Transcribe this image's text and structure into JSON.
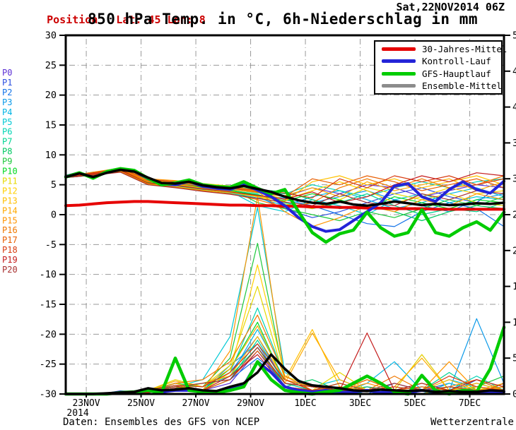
{
  "header": {
    "position_label": "Position",
    "position_value": "Lat: 45 Lon: 8",
    "run_date": "Sat,22NOV2014 06Z",
    "accent_color": "#cc0000"
  },
  "footer": {
    "source": "Daten: Ensembles des GFS von NCEP",
    "brand": "Wetterzentrale"
  },
  "chart_data": {
    "type": "line",
    "title": "850 hPa Temp. in °C, 6h-Niederschlag in mm",
    "x_axis": {
      "start": "22NOV2014 06Z",
      "days": 16,
      "year_label": "2014",
      "ticks": [
        {
          "day": 0.75,
          "label": "23NOV"
        },
        {
          "day": 2.75,
          "label": "25NOV"
        },
        {
          "day": 4.75,
          "label": "27NOV"
        },
        {
          "day": 6.75,
          "label": "29NOV"
        },
        {
          "day": 8.75,
          "label": "1DEC"
        },
        {
          "day": 10.75,
          "label": "3DEC"
        },
        {
          "day": 12.75,
          "label": "5DEC"
        },
        {
          "day": 14.75,
          "label": "7DEC"
        }
      ]
    },
    "y_left": {
      "min": -30,
      "max": 30,
      "step": 5,
      "unit": "°C"
    },
    "y_right": {
      "min": 0,
      "max": 50,
      "step": 5,
      "unit": "mm"
    },
    "grid": {
      "color": "#999999",
      "style": "dash-dot"
    },
    "legend_position": "top-right",
    "main_series": [
      {
        "name": "30-Jahres-Mittel",
        "color": "#e60000",
        "line_color": "#e60000",
        "width": 4,
        "temp": [
          1.5,
          1.6,
          1.8,
          2.0,
          2.1,
          2.2,
          2.2,
          2.1,
          2.0,
          1.9,
          1.8,
          1.7,
          1.6,
          1.6,
          1.5,
          1.5,
          1.4,
          1.4,
          1.3,
          1.3,
          1.2,
          1.2,
          1.1,
          1.1,
          1.0,
          1.0,
          1.0,
          0.9,
          0.9,
          0.9,
          0.9,
          0.9,
          0.9
        ],
        "precip": null
      },
      {
        "name": "Kontroll-Lauf",
        "color": "#2424d8",
        "line_color": "#2424d8",
        "width": 4,
        "temp": [
          6.4,
          7.0,
          6.2,
          7.1,
          7.6,
          7.3,
          6.0,
          5.1,
          5.0,
          5.6,
          4.7,
          4.4,
          4.2,
          5.0,
          4.1,
          3.0,
          1.5,
          -0.5,
          -2.0,
          -2.8,
          -2.5,
          -1.0,
          0.5,
          2.0,
          4.8,
          5.2,
          3.0,
          2.2,
          4.2,
          5.5,
          4.2,
          3.6,
          5.6
        ],
        "precip": [
          0,
          0,
          0,
          0,
          0.3,
          0.2,
          0.5,
          0.3,
          0.5,
          0.5,
          0.3,
          0.2,
          0.8,
          1.2,
          4.5,
          3.0,
          1.0,
          0.5,
          0.3,
          0.5,
          0.2,
          0.3,
          0.5,
          0.2,
          0.3,
          0.2,
          0.5,
          0.3,
          0.2,
          0.5,
          0.3,
          0.2,
          0.3
        ]
      },
      {
        "name": "GFS-Hauptlauf",
        "color": "#00cc00",
        "line_color": "#00cc00",
        "width": 4.5,
        "temp": [
          6.3,
          7.0,
          6.1,
          7.2,
          7.7,
          7.4,
          6.1,
          5.0,
          5.3,
          5.8,
          5.0,
          4.7,
          4.6,
          5.5,
          4.4,
          3.5,
          4.2,
          0.5,
          -3.0,
          -4.6,
          -3.2,
          -2.6,
          0.4,
          -2.2,
          -3.6,
          -3.0,
          0.8,
          -3.0,
          -3.6,
          -2.2,
          -1.2,
          -2.6,
          0.4
        ],
        "precip": [
          0,
          0,
          0,
          0,
          0.2,
          0.3,
          0.5,
          0.2,
          5.0,
          0.5,
          0.3,
          0.2,
          0.5,
          1.0,
          4.5,
          2.0,
          0.5,
          0.2,
          0,
          0.3,
          0.5,
          1.5,
          2.5,
          1.5,
          0.3,
          0,
          2.6,
          0.5,
          0,
          0.5,
          0.3,
          3.5,
          9.3
        ]
      },
      {
        "name": "Ensemble-Mittel",
        "color": "#8c8c8c",
        "line_color": "#000000",
        "width": 3.5,
        "temp": [
          6.3,
          6.9,
          6.3,
          7.0,
          7.5,
          7.2,
          6.2,
          5.3,
          5.2,
          5.5,
          4.9,
          4.6,
          4.4,
          4.8,
          4.3,
          3.8,
          3.0,
          2.4,
          2.0,
          1.8,
          2.2,
          1.7,
          1.5,
          1.8,
          2.2,
          1.9,
          1.6,
          1.8,
          1.6,
          1.7,
          1.9,
          1.8,
          2.0
        ],
        "precip": [
          0,
          0,
          0,
          0.1,
          0.2,
          0.3,
          0.8,
          0.5,
          0.6,
          0.8,
          0.5,
          0.4,
          1.0,
          1.5,
          3.0,
          5.5,
          3.5,
          1.8,
          1.2,
          1.0,
          0.8,
          0.5,
          0.4,
          0.6,
          0.5,
          0.4,
          0.5,
          0.3,
          0.4,
          0.3,
          0.3,
          0.5,
          0.4
        ]
      }
    ],
    "members": [
      {
        "name": "P0",
        "color": "#5b2fd4",
        "temp": [
          6.4,
          7.0,
          7.6,
          5.8,
          5.4,
          4.9,
          4.6,
          4.0,
          3.0,
          4.5,
          3.5,
          5.0,
          4.5,
          3.0,
          4.0,
          5.0,
          4.5
        ],
        "precip": [
          0,
          0,
          0,
          0,
          0.5,
          0.5,
          1.5,
          6,
          1,
          0,
          0.5,
          0,
          0.5,
          0,
          0,
          0.5,
          0
        ]
      },
      {
        "name": "P1",
        "color": "#2b4fe0",
        "temp": [
          6.2,
          6.6,
          7.3,
          5.2,
          5.0,
          4.4,
          3.8,
          3.0,
          1.0,
          -0.5,
          0.5,
          2.0,
          3.5,
          4.5,
          3.0,
          2.0,
          5.5
        ],
        "precip": [
          0,
          0,
          0,
          0.3,
          1.5,
          0.5,
          3,
          8,
          1.5,
          0.5,
          0,
          1,
          0,
          0.5,
          1.5,
          0.5,
          1
        ]
      },
      {
        "name": "P2",
        "color": "#1273e8",
        "temp": [
          6.3,
          6.9,
          7.7,
          5.6,
          5.3,
          4.8,
          4.5,
          3.8,
          2.5,
          1.5,
          0.0,
          -1.5,
          -2.0,
          0.5,
          2.0,
          1.0,
          -2.0
        ],
        "precip": [
          0,
          0,
          0,
          0.5,
          1,
          1.5,
          2,
          5,
          2,
          1,
          0.5,
          0,
          1.5,
          0.5,
          0,
          2,
          0.5
        ]
      },
      {
        "name": "P3",
        "color": "#0a99e8",
        "temp": [
          6.4,
          7.1,
          7.4,
          5.4,
          5.6,
          5.0,
          4.0,
          3.2,
          2.8,
          2.0,
          3.0,
          4.0,
          2.5,
          1.5,
          0.5,
          2.5,
          3.5
        ],
        "precip": [
          0,
          0,
          0,
          0.2,
          0.8,
          0.5,
          4,
          7,
          1,
          0.5,
          1.5,
          0.5,
          0,
          1,
          0.5,
          10.5,
          1.5
        ]
      },
      {
        "name": "P4",
        "color": "#00b4e4",
        "temp": [
          6.2,
          6.7,
          7.2,
          5.0,
          4.8,
          4.2,
          3.6,
          2.8,
          1.5,
          3.0,
          4.0,
          2.5,
          1.0,
          2.0,
          3.5,
          4.5,
          3.0
        ],
        "precip": [
          0,
          0,
          0,
          0.5,
          1.2,
          1,
          2.5,
          9,
          2,
          0.5,
          0,
          1.5,
          4.5,
          0.5,
          2,
          1,
          0.5
        ]
      },
      {
        "name": "P5",
        "color": "#00c8d4",
        "temp": [
          6.3,
          6.8,
          7.6,
          5.7,
          5.1,
          4.5,
          3.9,
          1.5,
          0.5,
          2.5,
          1.5,
          0.0,
          2.5,
          3.5,
          2.0,
          3.0,
          2.5
        ],
        "precip": [
          0,
          0,
          0.2,
          0.5,
          1,
          2,
          8,
          26,
          3,
          1,
          2,
          0.5,
          0.5,
          0,
          1.5,
          0.5,
          0
        ]
      },
      {
        "name": "P6",
        "color": "#00d4b4",
        "temp": [
          6.4,
          7.0,
          7.5,
          5.5,
          5.3,
          4.7,
          4.3,
          3.6,
          3.5,
          5.0,
          4.0,
          3.0,
          4.5,
          5.5,
          4.5,
          5.5,
          6.0
        ],
        "precip": [
          0,
          0,
          0,
          0.3,
          1.5,
          1,
          3,
          12,
          2.5,
          1,
          0.5,
          0,
          0.5,
          5.5,
          0.5,
          2.5,
          0.5
        ]
      },
      {
        "name": "P7",
        "color": "#00d493",
        "temp": [
          6.2,
          6.6,
          7.4,
          5.3,
          4.9,
          4.3,
          4.1,
          3.4,
          2.0,
          1.0,
          2.0,
          3.5,
          1.5,
          0.0,
          1.0,
          0.5,
          2.0
        ],
        "precip": [
          0,
          0,
          0,
          0.5,
          1,
          0.5,
          2,
          7.5,
          1.5,
          0.5,
          1,
          0.5,
          0,
          0.5,
          3,
          0.5,
          1
        ]
      },
      {
        "name": "P8",
        "color": "#00c862",
        "temp": [
          6.3,
          6.9,
          7.8,
          5.9,
          5.5,
          5.1,
          4.7,
          4.2,
          3.8,
          2.5,
          1.0,
          1.5,
          0.5,
          -1.0,
          0.5,
          1.5,
          1.0
        ],
        "precip": [
          0,
          0,
          0,
          0.2,
          0.8,
          1.5,
          2.5,
          6.5,
          1,
          2,
          0.5,
          1,
          0.5,
          0,
          0.5,
          1.5,
          0.5
        ]
      },
      {
        "name": "P9",
        "color": "#1ec83c",
        "temp": [
          6.4,
          7.1,
          7.6,
          5.6,
          5.2,
          4.6,
          4.4,
          2.0,
          1.0,
          0.0,
          -1.0,
          0.5,
          -0.5,
          1.0,
          2.5,
          1.5,
          3.0
        ],
        "precip": [
          0,
          0,
          0,
          0.5,
          1.5,
          1,
          5,
          21,
          2,
          0.5,
          1.5,
          0.5,
          1,
          0.5,
          0,
          1,
          2.5
        ]
      },
      {
        "name": "P10",
        "color": "#00d820",
        "temp": [
          6.3,
          6.8,
          7.5,
          5.4,
          5.0,
          4.5,
          4.0,
          3.3,
          2.3,
          3.5,
          2.5,
          1.0,
          3.0,
          2.0,
          1.0,
          2.5,
          2.0
        ],
        "precip": [
          0,
          0,
          0,
          0.3,
          1,
          0.5,
          3.5,
          10,
          1.5,
          1,
          0.5,
          0,
          0.5,
          1.5,
          0.5,
          0,
          0.5
        ]
      },
      {
        "name": "P11",
        "color": "#e6d800",
        "temp": [
          6.2,
          6.7,
          7.3,
          5.2,
          4.7,
          4.1,
          3.7,
          3.0,
          1.8,
          1.0,
          2.5,
          4.5,
          3.5,
          2.5,
          3.5,
          2.0,
          1.5
        ],
        "precip": [
          0,
          0,
          0,
          0.5,
          2,
          1,
          4,
          15,
          2,
          0.5,
          3,
          0.5,
          0.5,
          0,
          1,
          0.5,
          1.5
        ]
      },
      {
        "name": "P12",
        "color": "#ffd000",
        "temp": [
          6.4,
          7.0,
          7.7,
          5.8,
          5.6,
          5.2,
          4.8,
          4.0,
          2.5,
          4.0,
          5.5,
          4.0,
          2.0,
          3.0,
          4.5,
          3.5,
          4.0
        ],
        "precip": [
          0,
          0,
          0,
          0.4,
          1.5,
          0.5,
          3,
          18,
          2.5,
          1,
          0.5,
          2,
          0.5,
          5.5,
          0.5,
          1,
          0.5
        ]
      },
      {
        "name": "P13",
        "color": "#ffc000",
        "temp": [
          6.3,
          6.9,
          7.4,
          5.5,
          5.1,
          4.4,
          3.9,
          3.1,
          2.2,
          5.5,
          6.5,
          5.0,
          6.0,
          4.5,
          5.5,
          6.5,
          5.0
        ],
        "precip": [
          0,
          0,
          0,
          0.3,
          1,
          1.5,
          2.5,
          8,
          2,
          9,
          1,
          0.5,
          0,
          0.5,
          2,
          0.5,
          1
        ]
      },
      {
        "name": "P14",
        "color": "#ffaa00",
        "temp": [
          6.2,
          6.8,
          7.6,
          5.7,
          5.4,
          4.9,
          4.2,
          3.7,
          3.2,
          4.5,
          3.0,
          5.5,
          4.0,
          5.0,
          6.0,
          4.0,
          5.5
        ],
        "precip": [
          0,
          0,
          0,
          0.5,
          1.8,
          1,
          3.5,
          9.5,
          1.5,
          8.5,
          2,
          0.5,
          1,
          5,
          0.5,
          1.5,
          0.5
        ]
      },
      {
        "name": "P15",
        "color": "#ff9500",
        "temp": [
          6.4,
          7.1,
          7.8,
          6.0,
          5.7,
          5.0,
          4.6,
          3.9,
          0.5,
          -2.0,
          -0.5,
          1.5,
          0.5,
          2.5,
          1.5,
          3.5,
          2.5
        ],
        "precip": [
          0,
          0,
          0.2,
          0.5,
          1.2,
          0.5,
          6,
          27.5,
          2,
          1,
          0.5,
          1.5,
          0.5,
          0.5,
          4.5,
          0.5,
          1
        ]
      },
      {
        "name": "P16",
        "color": "#f07800",
        "temp": [
          6.3,
          6.7,
          7.2,
          5.1,
          4.6,
          4.0,
          3.5,
          2.5,
          1.2,
          2.0,
          4.5,
          6.0,
          4.5,
          6.0,
          4.5,
          5.0,
          6.5
        ],
        "precip": [
          0,
          0,
          0,
          0.4,
          1.5,
          2,
          4.5,
          11,
          2.5,
          0.5,
          1,
          0.5,
          2.5,
          0.5,
          1,
          2,
          0.5
        ]
      },
      {
        "name": "P17",
        "color": "#e85e00",
        "temp": [
          6.2,
          6.9,
          7.5,
          5.6,
          5.2,
          4.7,
          4.4,
          3.8,
          3.0,
          6.0,
          5.0,
          6.5,
          5.5,
          4.0,
          5.0,
          6.0,
          4.5
        ],
        "precip": [
          0,
          0,
          0,
          0.3,
          1,
          0.5,
          2,
          6,
          1.5,
          1,
          0.5,
          2,
          0.5,
          1,
          0.5,
          0,
          1.5
        ]
      },
      {
        "name": "P18",
        "color": "#d83c10",
        "temp": [
          6.4,
          7.0,
          7.7,
          5.9,
          5.5,
          5.0,
          4.5,
          4.1,
          3.6,
          2.8,
          6.0,
          4.5,
          6.5,
          5.5,
          6.5,
          5.0,
          6.0
        ],
        "precip": [
          0,
          0,
          0,
          0.5,
          1.2,
          1,
          3,
          7,
          2,
          0.5,
          1.5,
          0.5,
          1,
          0.5,
          2.5,
          1,
          0.5
        ]
      },
      {
        "name": "P19",
        "color": "#c41c1c",
        "temp": [
          6.3,
          6.8,
          7.4,
          5.3,
          4.9,
          4.3,
          3.8,
          3.2,
          2.6,
          3.8,
          2.0,
          3.0,
          5.0,
          6.5,
          5.5,
          7.0,
          6.5
        ],
        "precip": [
          0,
          0,
          0,
          0.2,
          0.8,
          0.5,
          2.5,
          5.5,
          1,
          0.5,
          0.5,
          8.5,
          0.5,
          1.5,
          0.5,
          2,
          1
        ]
      },
      {
        "name": "P20",
        "color": "#a83030",
        "temp": [
          6.2,
          6.6,
          7.1,
          5.0,
          4.5,
          3.9,
          3.4,
          2.7,
          2.1,
          1.5,
          3.5,
          2.0,
          1.5,
          3.5,
          2.5,
          4.0,
          3.5
        ],
        "precip": [
          0,
          0,
          0,
          0.4,
          1,
          1.5,
          2,
          6.5,
          1.5,
          1,
          0.5,
          0.5,
          1.5,
          0.5,
          1,
          0.5,
          0.5
        ]
      }
    ]
  }
}
